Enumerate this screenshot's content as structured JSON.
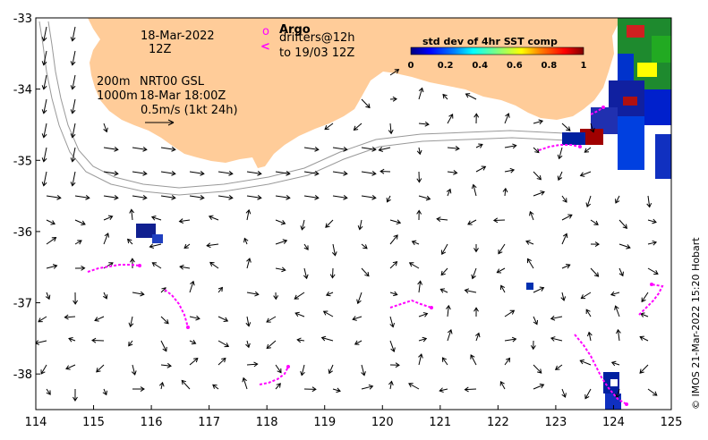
{
  "map": {
    "lon_range": [
      114,
      125
    ],
    "lat_range": [
      -38.5,
      -33
    ],
    "x_ticks": [
      "114",
      "115",
      "116",
      "117",
      "118",
      "119",
      "120",
      "121",
      "122",
      "123",
      "124",
      "125"
    ],
    "y_ticks": [
      "-33",
      "-34",
      "-35",
      "-36",
      "-37",
      "-38"
    ],
    "land_color": "#FFCC99",
    "isobath_color": "#999999",
    "drifter_color": "#FF00FF"
  },
  "annotations": {
    "date": "18-Mar-2022",
    "time": "12Z",
    "isobath_200": "200m",
    "isobath_1000": "1000m",
    "product": "NRT00 GSL",
    "product_time": "18-Mar 18:00Z",
    "scale_label": "0.5m/s (1kt 24h)"
  },
  "legend": {
    "argo_marker": "o",
    "argo_label": "Argo",
    "drifter_marker": "<",
    "drifter_line1": "drifters@12h",
    "drifter_line2": "to 19/03 12Z"
  },
  "colorbar": {
    "title": "std dev of 4hr SST comp",
    "ticks": [
      "0",
      "0.2",
      "0.4",
      "0.6",
      "0.8",
      "1"
    ]
  },
  "credit": "© IMOS 21-Mar-2022 15:20 Hobart"
}
